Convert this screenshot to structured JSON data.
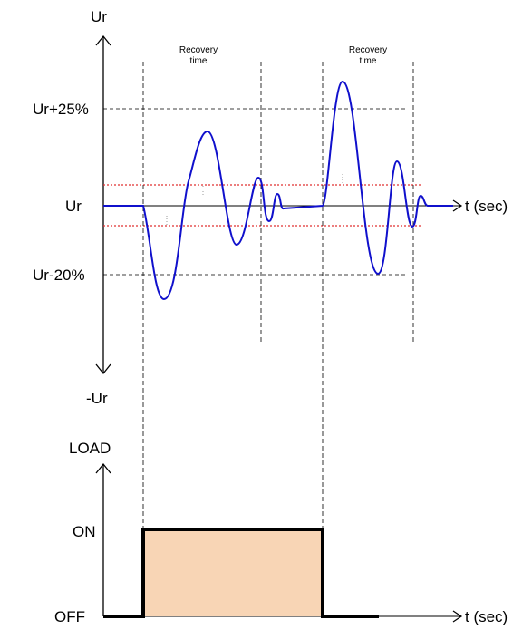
{
  "voltage_axis": {
    "top_label": "Ur",
    "bottom_label": "-Ur",
    "level_plus": "Ur+25%",
    "level_nominal": "Ur",
    "level_minus": "Ur-20%",
    "time_label": "t (sec)"
  },
  "recovery": {
    "first_label": [
      "Recovery",
      "time"
    ],
    "second_label": [
      "Recovery",
      "time"
    ]
  },
  "load_axis": {
    "title": "LOAD",
    "on_label": "ON",
    "off_label": "OFF",
    "time_label": "t (sec)"
  },
  "colors": {
    "waveform": "#1010cc",
    "tolerance_band": "#e03030",
    "load_fill": "#f8d5b5",
    "load_line": "#000000"
  }
}
